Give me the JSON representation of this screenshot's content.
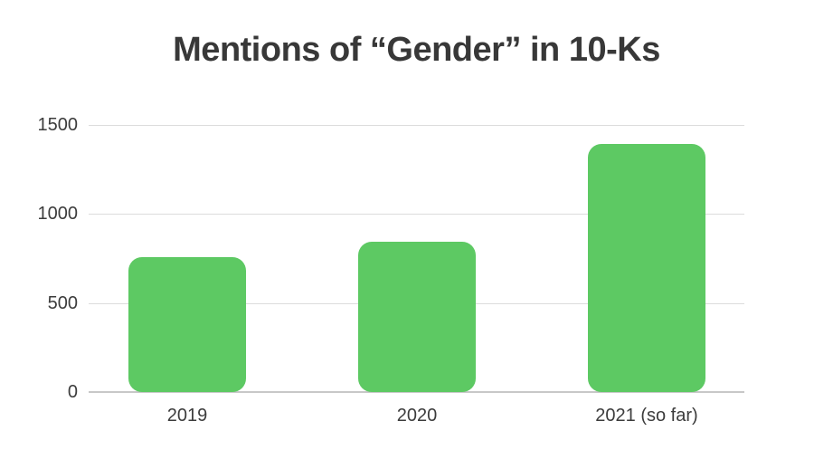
{
  "chart_data": {
    "type": "bar",
    "title": "Mentions of “Gender” in 10-Ks",
    "categories": [
      "2019",
      "2020",
      "2021 (so far)"
    ],
    "values": [
      760,
      845,
      1395
    ],
    "xlabel": "",
    "ylabel": "",
    "ylim": [
      0,
      1500
    ],
    "yticks": [
      0,
      500,
      1000,
      1500
    ],
    "ytick_labels": [
      "0",
      "500",
      "1000",
      "1500"
    ],
    "grid": "horizontal-only",
    "legend": "none",
    "bar_color": "#5dc963",
    "title_color": "#383838",
    "tick_label_color": "#3c3c3c",
    "gridline_color": "#dcdcdc",
    "baseline_color": "#c8c8c8",
    "background_color": "#ffffff"
  }
}
